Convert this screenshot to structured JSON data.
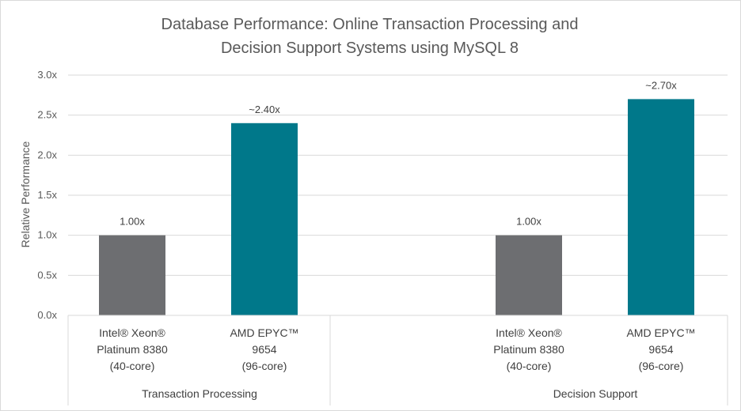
{
  "chart_data": {
    "type": "bar",
    "title": [
      "Database Performance:  Online Transaction Processing and",
      "Decision Support Systems using MySQL 8"
    ],
    "ylabel": "Relative Performance",
    "xlabel": "",
    "ylim": [
      0,
      3.0
    ],
    "yticks": [
      "0.0x",
      "0.5x",
      "1.0x",
      "1.5x",
      "2.0x",
      "2.5x",
      "3.0x"
    ],
    "grid": true,
    "groups": [
      {
        "name": "Transaction Processing",
        "categories": [
          [
            "Intel® Xeon®",
            "Platinum 8380",
            "(40-core)"
          ],
          [
            "AMD EPYC™",
            "9654",
            "(96-core)"
          ]
        ],
        "values": [
          1.0,
          2.4
        ],
        "labels": [
          "1.00x",
          "~2.40x"
        ]
      },
      {
        "name": "Decision Support",
        "categories": [
          [
            "Intel® Xeon®",
            "Platinum 8380",
            "(40-core)"
          ],
          [
            "AMD EPYC™",
            "9654",
            "(96-core)"
          ]
        ],
        "values": [
          1.0,
          2.7
        ],
        "labels": [
          "1.00x",
          "~2.70x"
        ]
      }
    ],
    "colors": [
      "#6d6e71",
      "#00788a"
    ]
  }
}
